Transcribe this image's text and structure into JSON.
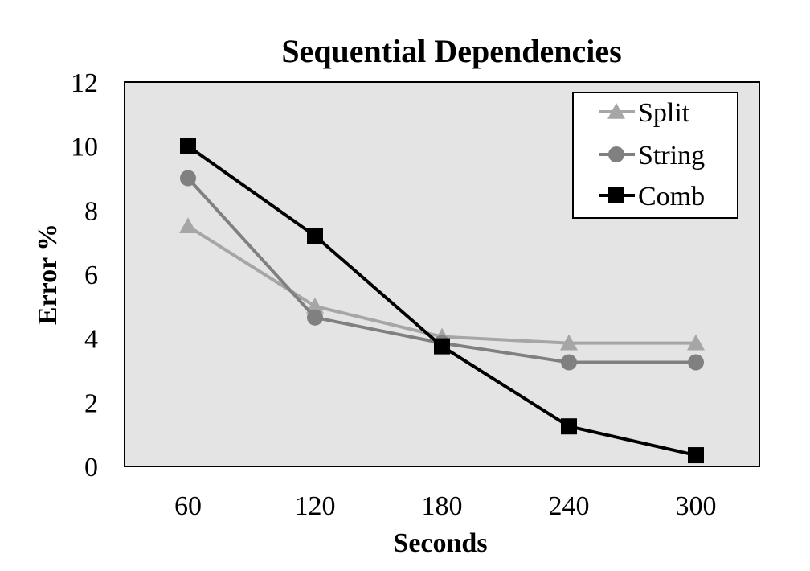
{
  "chart_data": {
    "type": "line",
    "title": "Sequential Dependencies",
    "xlabel": "Seconds",
    "ylabel": "Error %",
    "categories": [
      "60",
      "120",
      "180",
      "240",
      "300"
    ],
    "ylim": [
      0,
      12
    ],
    "yticks": [
      "0",
      "2",
      "4",
      "6",
      "8",
      "10",
      "12"
    ],
    "grid": false,
    "legend_position": "top-right",
    "plot_background": "#e4e4e4",
    "series": [
      {
        "name": "Split",
        "values": [
          7.5,
          5.0,
          4.05,
          3.85,
          3.85
        ],
        "color": "#a6a6a6",
        "marker": "triangle"
      },
      {
        "name": "String",
        "values": [
          9.0,
          4.65,
          3.85,
          3.25,
          3.25
        ],
        "color": "#808080",
        "marker": "circle"
      },
      {
        "name": "Comb",
        "values": [
          10.0,
          7.2,
          3.75,
          1.25,
          0.35
        ],
        "color": "#000000",
        "marker": "square"
      }
    ]
  }
}
